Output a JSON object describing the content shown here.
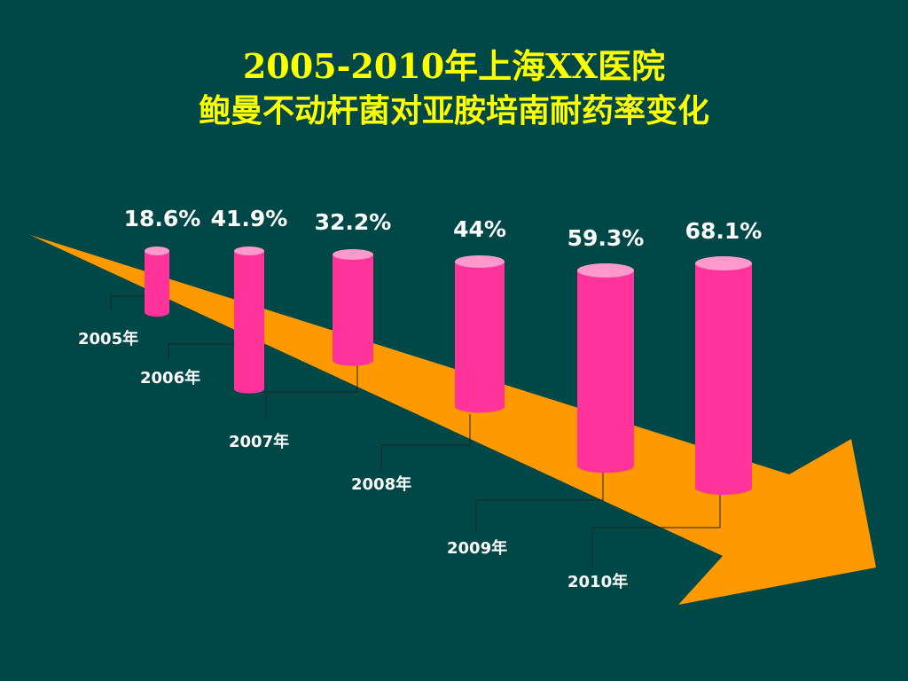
{
  "title_line1": "2005-2010年上海XX医院",
  "title_line2": "鲍曼不动杆菌对亚胺培南耐药率变化",
  "chart_data": {
    "type": "bar",
    "categories": [
      "2005年",
      "2006年",
      "2007年",
      "2008年",
      "2009年",
      "2010年"
    ],
    "values": [
      18.6,
      41.9,
      32.2,
      44,
      59.3,
      68.1
    ],
    "value_labels": [
      "18.6%",
      "41.9%",
      "32.2%",
      "44%",
      "59.3%",
      "68.1%"
    ],
    "title": "2005-2010年上海XX医院 鲍曼不动杆菌对亚胺培南耐药率变化",
    "unit": "%",
    "colors": {
      "bar": "#ff3399",
      "bar_top": "#ff99cc",
      "arrow": "#ff9900",
      "background": "#004848"
    }
  }
}
